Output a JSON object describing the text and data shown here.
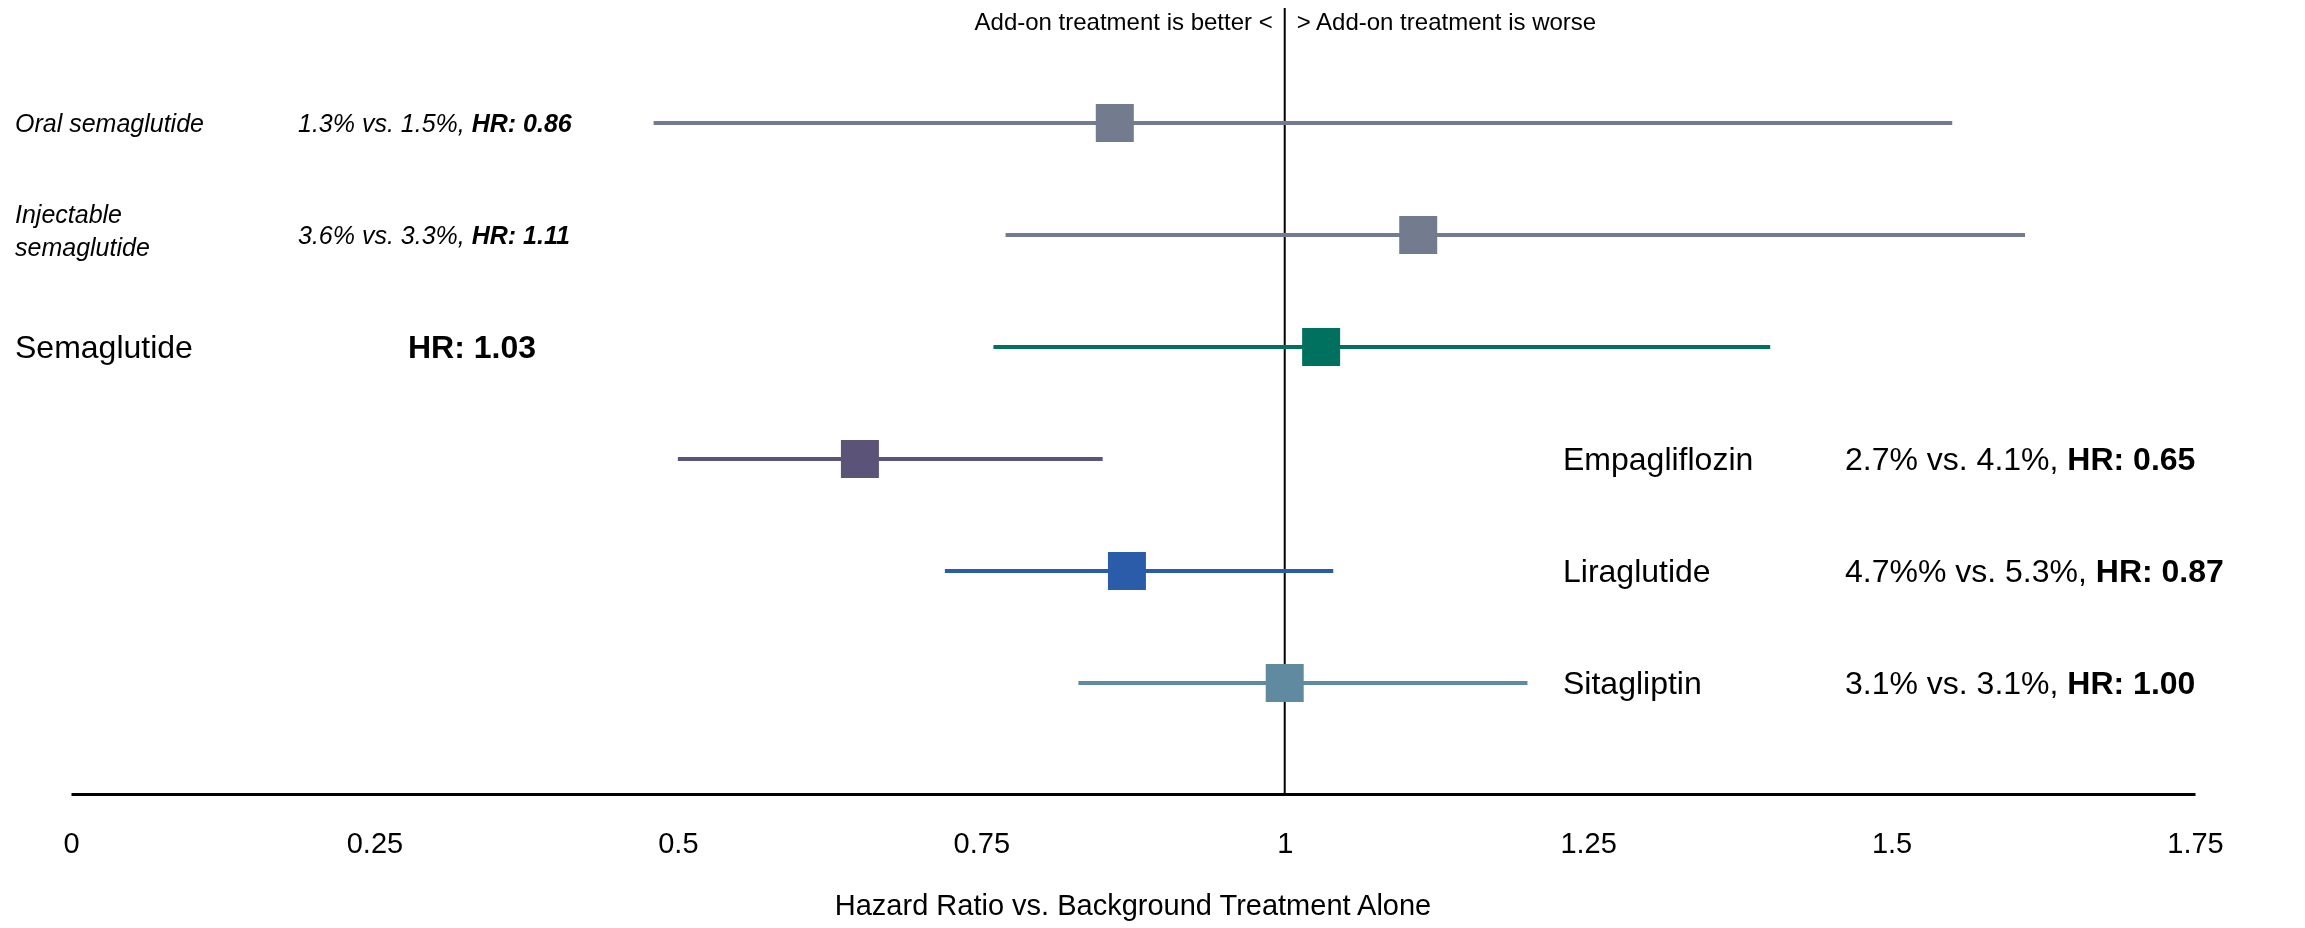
{
  "chart_data": {
    "type": "scatter",
    "orientation": "horizontal",
    "marker": "square",
    "categories": [
      "Oral semaglutide",
      "Injectable semaglutide",
      "Semaglutide",
      "Empagliflozin",
      "Liraglutide",
      "Sitagliptin"
    ],
    "values": [
      0.86,
      1.11,
      1.03,
      0.65,
      0.87,
      1.0
    ],
    "errors": [
      [
        0.48,
        1.55
      ],
      [
        0.77,
        1.61
      ],
      [
        0.76,
        1.4
      ],
      [
        0.5,
        0.85
      ],
      [
        0.72,
        1.04
      ],
      [
        0.83,
        1.2
      ]
    ],
    "colors": [
      "#737b8f",
      "#737b8f",
      "#00715f",
      "#5b5478",
      "#2a5caa",
      "#5f8aa0"
    ],
    "xlim": [
      0,
      1.75
    ],
    "xticks": [
      0,
      0.25,
      0.5,
      0.75,
      1,
      1.25,
      1.5,
      1.75
    ],
    "xlabel": "Hazard Ratio vs. Background Treatment Alone",
    "ref_lines": [
      {
        "axis": "x",
        "value": 1,
        "color": "#000000"
      }
    ],
    "annotations": [
      "Add-on treatment is better <",
      "> Add-on treatment is worse",
      "1.3% vs. 1.5%, HR: 0.86",
      "3.6% vs. 3.3%, HR: 1.11",
      "HR: 1.03",
      "2.7% vs. 4.1%, HR: 0.65",
      "4.7%% vs. 5.3%, HR: 0.87",
      "3.1% vs. 3.1%, HR: 1.00"
    ],
    "grid": false
  }
}
